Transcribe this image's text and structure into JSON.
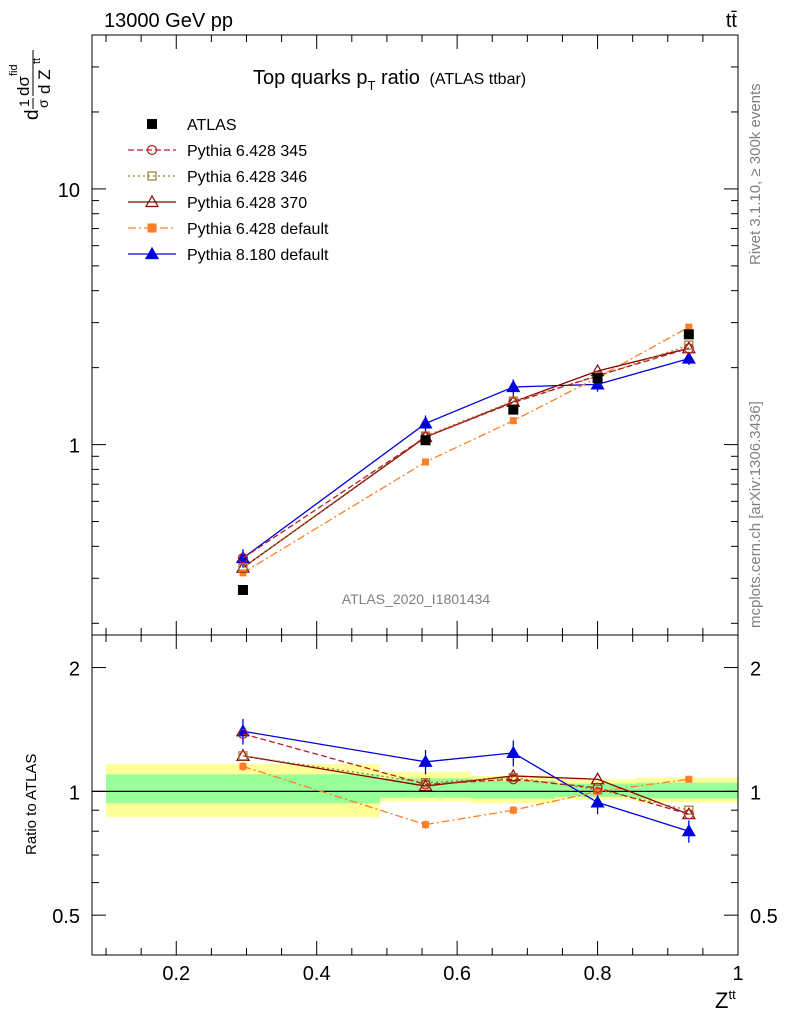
{
  "header": {
    "energy_label": "13000 GeV pp",
    "process_label": "tt̄"
  },
  "side_labels": {
    "rivet": "Rivet 3.1.10, ≥ 300k events",
    "mcplots": "mcplots.cern.ch [arXiv:1306.3436]"
  },
  "chart_data": [
    {
      "type": "scatter",
      "title": "Top quarks p",
      "title_sub": "T",
      "title_rest": " ratio",
      "title_extra": "(ATLAS ttbar)",
      "analysis_label": "ATLAS_2020_I1801434",
      "ylabel_main": "dσ",
      "ylabel_denom": "d Z",
      "ylabel_sup": "fid",
      "ylabel_denom_sup": "tt",
      "ylabel_prefix_num": "1",
      "ylabel_prefix_den": "σ",
      "ylabel_d": "d",
      "xlim": [
        0.08,
        1.0
      ],
      "ylim": [
        0.18,
        40
      ],
      "y_scale": "log",
      "y_tick_labels": [
        {
          "value": 1,
          "label": "1"
        },
        {
          "value": 10,
          "label": "10"
        }
      ],
      "legend_placement": "top-left",
      "series": [
        {
          "name": "ATLAS",
          "color": "#000000",
          "marker": "square-filled",
          "line": "none",
          "x": [
            0.295,
            0.555,
            0.68,
            0.8,
            0.93
          ],
          "y": [
            0.27,
            1.04,
            1.37,
            1.82,
            2.7
          ],
          "err": [
            0,
            0,
            0,
            0,
            0
          ]
        },
        {
          "name": "Pythia 6.428 345",
          "color": "#b22222",
          "marker": "circle-open",
          "line": "dashed",
          "x": [
            0.295,
            0.555,
            0.68,
            0.8,
            0.93
          ],
          "y": [
            0.36,
            1.07,
            1.46,
            1.86,
            2.38
          ],
          "err": [
            0,
            0,
            0,
            0,
            0
          ]
        },
        {
          "name": "Pythia 6.428 346",
          "color": "#9b7b2b",
          "marker": "square-open",
          "line": "dotted",
          "x": [
            0.295,
            0.555,
            0.68,
            0.8,
            0.93
          ],
          "y": [
            0.33,
            1.08,
            1.48,
            1.85,
            2.45
          ],
          "err": [
            0,
            0,
            0,
            0,
            0
          ]
        },
        {
          "name": "Pythia 6.428 370",
          "color": "#8b0000",
          "marker": "triangle-open",
          "line": "solid",
          "x": [
            0.295,
            0.555,
            0.68,
            0.8,
            0.93
          ],
          "y": [
            0.33,
            1.07,
            1.47,
            1.94,
            2.38
          ],
          "err": [
            0,
            0,
            0,
            0,
            0
          ]
        },
        {
          "name": "Pythia 6.428 default",
          "color": "#ff7f27",
          "marker": "square-filled",
          "line": "dashdot",
          "x": [
            0.295,
            0.555,
            0.68,
            0.8,
            0.93
          ],
          "y": [
            0.315,
            0.855,
            1.24,
            1.83,
            2.88
          ],
          "err": [
            0,
            0,
            0,
            0,
            0
          ]
        },
        {
          "name": "Pythia 8.180 default",
          "color": "#0000dd",
          "marker": "triangle-filled",
          "line": "solid",
          "x": [
            0.295,
            0.555,
            0.68,
            0.8,
            0.93
          ],
          "y": [
            0.36,
            1.21,
            1.68,
            1.72,
            2.17
          ],
          "err": [
            0.03,
            0.09,
            0.12,
            0.11,
            0.12
          ]
        }
      ]
    },
    {
      "type": "scatter",
      "ylabel": "Ratio to ATLAS",
      "xlabel": "Z",
      "xlabel_sup": "tt",
      "xlim": [
        0.08,
        1.0
      ],
      "ylim": [
        0.4,
        2.4
      ],
      "y_scale": "log",
      "x_tick_labels": [
        {
          "value": 0.2,
          "label": "0.2"
        },
        {
          "value": 0.4,
          "label": "0.4"
        },
        {
          "value": 0.6,
          "label": "0.6"
        },
        {
          "value": 0.8,
          "label": "0.8"
        },
        {
          "value": 1.0,
          "label": "1"
        }
      ],
      "y_tick_labels": [
        {
          "value": 0.5,
          "label": "0.5"
        },
        {
          "value": 1,
          "label": "1"
        },
        {
          "value": 2,
          "label": "2"
        }
      ],
      "bands": [
        {
          "x0": 0.1,
          "x1": 0.49,
          "yel_lo": 0.865,
          "yel_hi": 1.165,
          "grn_lo": 0.935,
          "grn_hi": 1.1
        },
        {
          "x0": 0.49,
          "x1": 0.62,
          "yel_lo": 0.945,
          "yel_hi": 1.115,
          "grn_lo": 0.965,
          "grn_hi": 1.075
        },
        {
          "x0": 0.62,
          "x1": 0.74,
          "yel_lo": 0.935,
          "yel_hi": 1.09,
          "grn_lo": 0.96,
          "grn_hi": 1.06
        },
        {
          "x0": 0.74,
          "x1": 0.855,
          "yel_lo": 0.955,
          "yel_hi": 1.07,
          "grn_lo": 0.97,
          "grn_hi": 1.045
        },
        {
          "x0": 0.855,
          "x1": 1.0,
          "yel_lo": 0.94,
          "yel_hi": 1.08,
          "grn_lo": 0.96,
          "grn_hi": 1.05
        }
      ],
      "series": [
        {
          "name": "Pythia 6.428 345",
          "color": "#b22222",
          "marker": "circle-open",
          "line": "dashed",
          "x": [
            0.295,
            0.555,
            0.68,
            0.8,
            0.93
          ],
          "y": [
            1.38,
            1.04,
            1.07,
            1.02,
            0.88
          ],
          "err": [
            0,
            0,
            0,
            0,
            0
          ]
        },
        {
          "name": "Pythia 6.428 346",
          "color": "#9b7b2b",
          "marker": "square-open",
          "line": "dotted",
          "x": [
            0.295,
            0.555,
            0.68,
            0.8,
            0.93
          ],
          "y": [
            1.22,
            1.05,
            1.08,
            1.01,
            0.9
          ],
          "err": [
            0,
            0,
            0,
            0,
            0
          ]
        },
        {
          "name": "Pythia 6.428 370",
          "color": "#8b0000",
          "marker": "triangle-open",
          "line": "solid",
          "x": [
            0.295,
            0.555,
            0.68,
            0.8,
            0.93
          ],
          "y": [
            1.22,
            1.03,
            1.09,
            1.07,
            0.88
          ],
          "err": [
            0,
            0,
            0,
            0,
            0
          ]
        },
        {
          "name": "Pythia 6.428 default",
          "color": "#ff7f27",
          "marker": "square-filled",
          "line": "dashdot",
          "x": [
            0.295,
            0.555,
            0.68,
            0.8,
            0.93
          ],
          "y": [
            1.15,
            0.83,
            0.9,
            1.0,
            1.07
          ],
          "err": [
            0.03,
            0.02,
            0.02,
            0.02,
            0.02
          ]
        },
        {
          "name": "Pythia 8.180 default",
          "color": "#0000dd",
          "marker": "triangle-filled",
          "line": "solid",
          "x": [
            0.295,
            0.555,
            0.68,
            0.8,
            0.93
          ],
          "y": [
            1.4,
            1.18,
            1.24,
            0.94,
            0.8
          ],
          "err": [
            0.1,
            0.08,
            0.09,
            0.06,
            0.05
          ]
        }
      ]
    }
  ]
}
